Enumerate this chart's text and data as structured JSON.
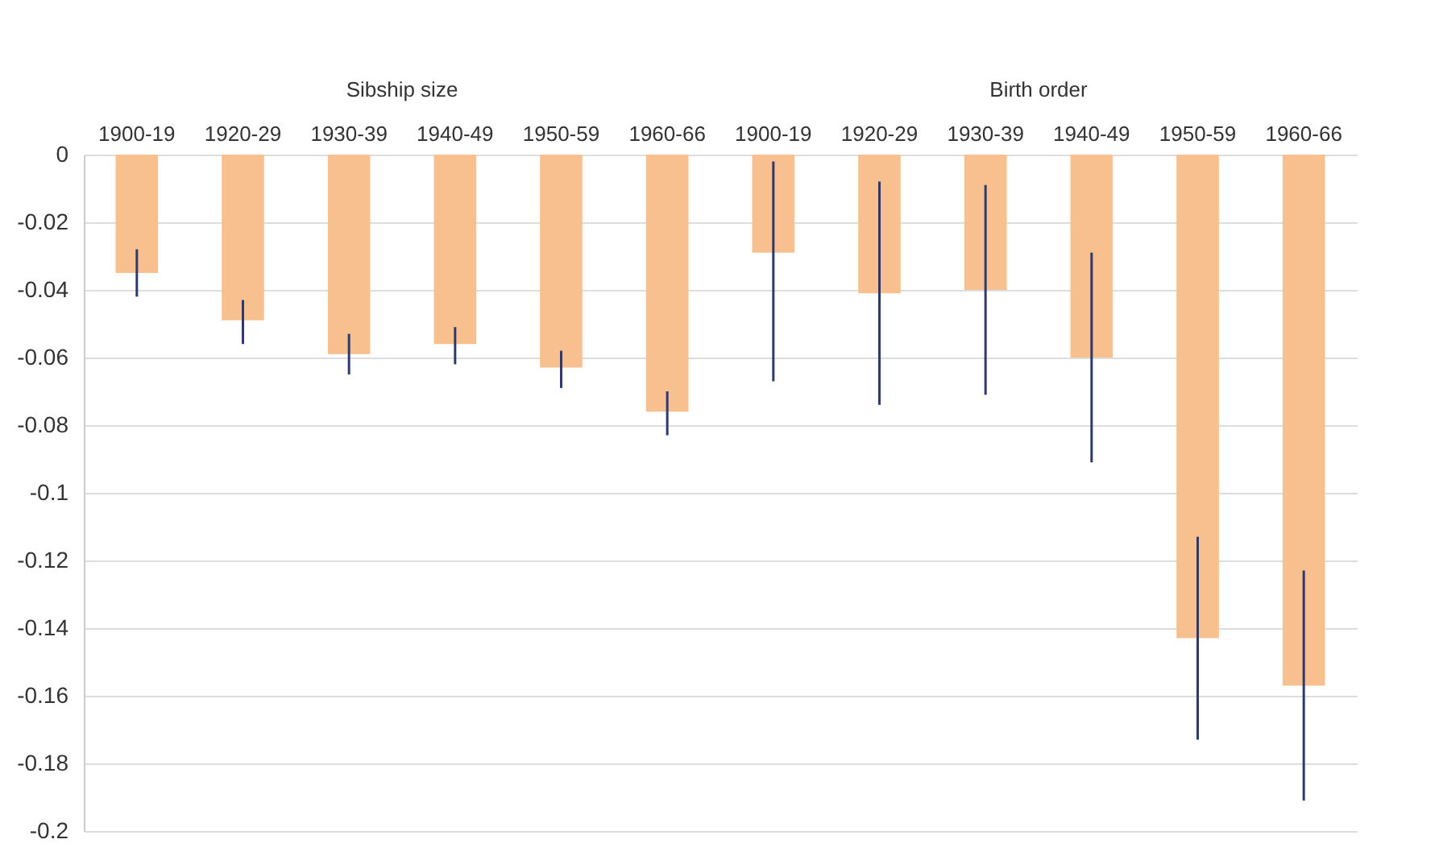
{
  "chart_data": {
    "type": "bar",
    "categories": [
      "1900-19",
      "1920-29",
      "1930-39",
      "1940-49",
      "1950-59",
      "1960-66",
      "1900-19",
      "1920-29",
      "1930-39",
      "1940-49",
      "1950-59",
      "1960-66"
    ],
    "series": [
      {
        "color": "#f9c08f",
        "values": [
          -0.035,
          -0.049,
          -0.059,
          -0.056,
          -0.063,
          -0.076,
          -0.029,
          -0.041,
          -0.04,
          -0.06,
          -0.143,
          -0.157
        ],
        "errors": [
          [
            -0.042,
            -0.028
          ],
          [
            -0.056,
            -0.043
          ],
          [
            -0.065,
            -0.053
          ],
          [
            -0.062,
            -0.051
          ],
          [
            -0.069,
            -0.058
          ],
          [
            -0.083,
            -0.07
          ],
          [
            -0.067,
            -0.002
          ],
          [
            -0.074,
            -0.008
          ],
          [
            -0.071,
            -0.009
          ],
          [
            -0.091,
            -0.029
          ],
          [
            -0.173,
            -0.113
          ],
          [
            -0.191,
            -0.123
          ]
        ]
      }
    ],
    "annotations": [
      "Sibship size",
      "Birth order"
    ],
    "ylim": [
      -0.2,
      0
    ],
    "yticks": [
      0,
      -0.02,
      -0.04,
      -0.06,
      -0.08,
      -0.1,
      -0.12,
      -0.14,
      -0.16,
      -0.18,
      -0.2
    ],
    "grid": "y"
  }
}
